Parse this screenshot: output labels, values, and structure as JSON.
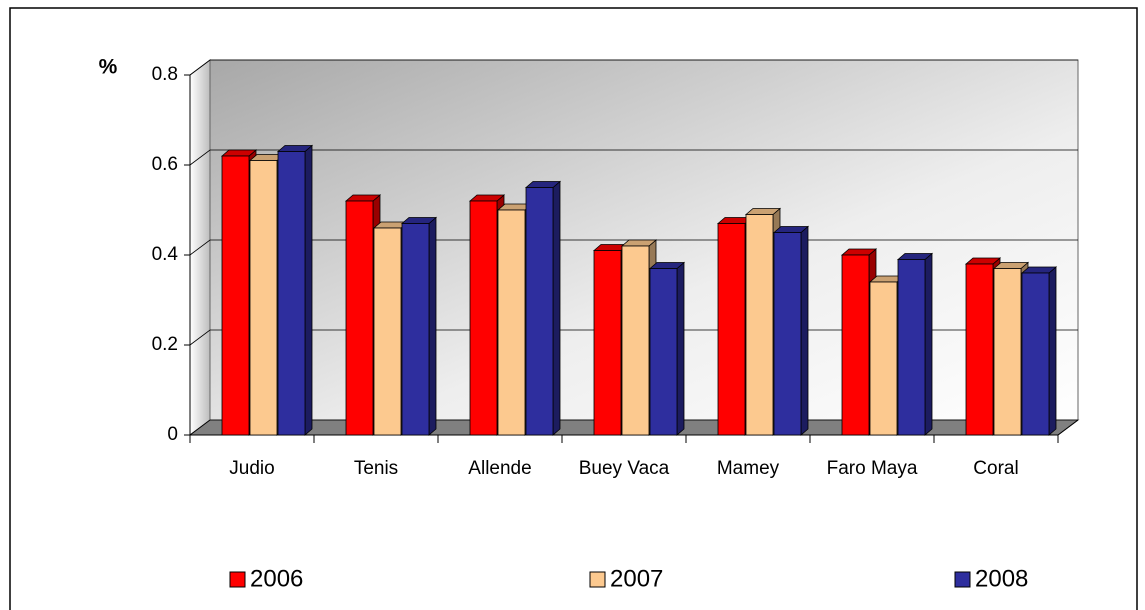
{
  "chart_data": {
    "type": "bar3d",
    "y_label": "%",
    "categories": [
      "Judio",
      "Tenis",
      "Allende",
      "Buey Vaca",
      "Mamey",
      "Faro Maya",
      "Coral"
    ],
    "series": [
      {
        "name": "2006",
        "color": "#ff0000",
        "values": [
          0.62,
          0.52,
          0.52,
          0.41,
          0.47,
          0.4,
          0.38
        ]
      },
      {
        "name": "2007",
        "color": "#fcc98f",
        "values": [
          0.61,
          0.46,
          0.5,
          0.42,
          0.49,
          0.34,
          0.37
        ]
      },
      {
        "name": "2008",
        "color": "#2e2e9e",
        "values": [
          0.63,
          0.47,
          0.55,
          0.37,
          0.45,
          0.39,
          0.36
        ]
      }
    ],
    "ylim": [
      0,
      0.8
    ],
    "yticks": [
      0,
      0.2,
      0.4,
      0.6,
      0.8
    ],
    "grid": true
  }
}
